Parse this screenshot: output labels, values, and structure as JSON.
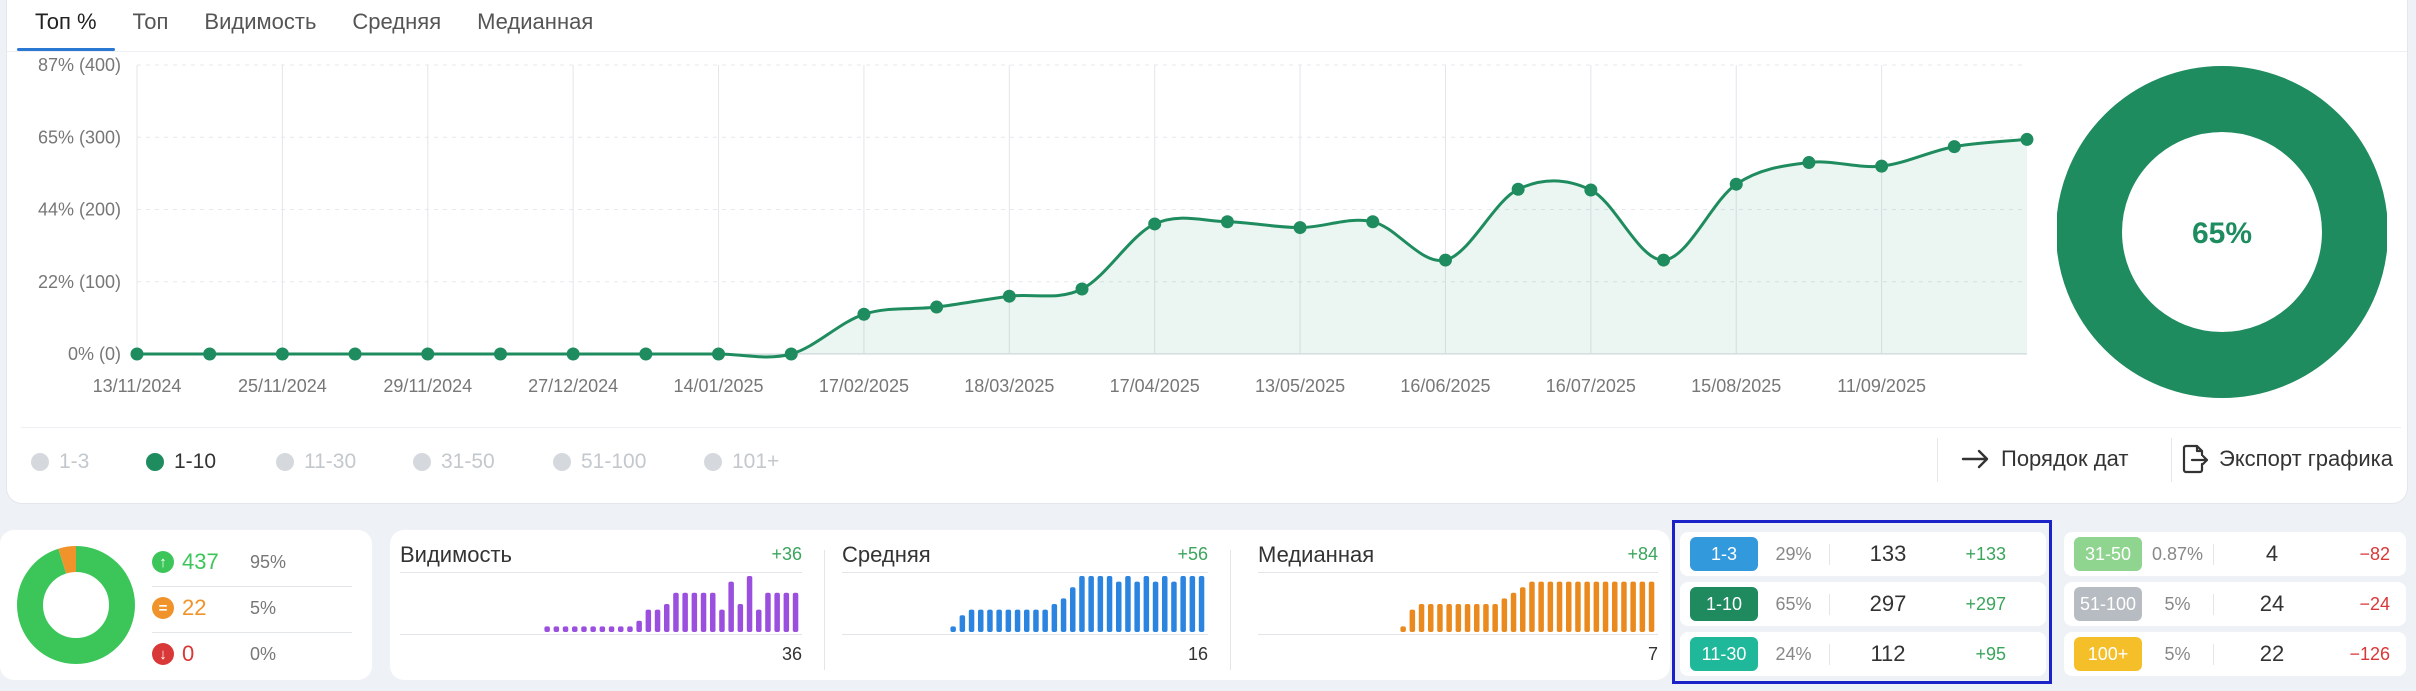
{
  "tabs": [
    {
      "label": "Топ %",
      "active": true
    },
    {
      "label": "Топ",
      "active": false
    },
    {
      "label": "Видимость",
      "active": false
    },
    {
      "label": "Средняя",
      "active": false
    },
    {
      "label": "Медианная",
      "active": false
    }
  ],
  "chart_data": {
    "type": "area",
    "title": "",
    "xlabel": "",
    "ylabel": "",
    "y_ticks": [
      "0% (0)",
      "22% (100)",
      "44% (200)",
      "65% (300)",
      "87% (400)"
    ],
    "ylim": [
      0,
      400
    ],
    "x_tick_labels": [
      "13/11/2024",
      "25/11/2024",
      "29/11/2024",
      "27/12/2024",
      "14/01/2025",
      "17/02/2025",
      "18/03/2025",
      "17/04/2025",
      "13/05/2025",
      "16/06/2025",
      "16/07/2025",
      "15/08/2025",
      "11/09/2025"
    ],
    "grid": true,
    "series": [
      {
        "color": "#1f8c5f",
        "values": [
          0,
          0,
          0,
          0,
          0,
          0,
          0,
          0,
          0,
          0,
          55,
          65,
          80,
          90,
          180,
          183,
          175,
          183,
          130,
          228,
          227,
          130,
          235,
          265,
          260,
          287,
          297
        ]
      }
    ]
  },
  "donut_big": {
    "label": "65%",
    "value": 65,
    "color": "#1f8c5f"
  },
  "legend": [
    {
      "label": "1-3",
      "active": false
    },
    {
      "label": "1-10",
      "active": true
    },
    {
      "label": "11-30",
      "active": false
    },
    {
      "label": "31-50",
      "active": false
    },
    {
      "label": "51-100",
      "active": false
    },
    {
      "label": "101+",
      "active": false
    }
  ],
  "actions": {
    "order_label": "Порядок дат",
    "export_label": "Экспорт графика"
  },
  "share": {
    "donut": [
      95,
      5,
      0
    ],
    "colors": [
      "#3cc65a",
      "#f0932b",
      "#d93838"
    ],
    "rows": [
      {
        "value": "437",
        "pct": "95%",
        "icon": "arrow-up-icon"
      },
      {
        "value": "22",
        "pct": "5%",
        "icon": "equal-icon"
      },
      {
        "value": "0",
        "pct": "0%",
        "icon": "arrow-down-icon"
      }
    ]
  },
  "metrics": [
    {
      "title": "Видимость",
      "delta": "+36",
      "value": "36",
      "color": "#9b4fdf",
      "bars": [
        1,
        1,
        1,
        1,
        1,
        1,
        1,
        1,
        1,
        1,
        2,
        4,
        4,
        5,
        7,
        7,
        7,
        7,
        7,
        4,
        9,
        5,
        10,
        4,
        7,
        7,
        7,
        7
      ]
    },
    {
      "title": "Средняя",
      "delta": "+56",
      "value": "16",
      "color": "#2a84e0",
      "bars": [
        1,
        3,
        4,
        4,
        4,
        4,
        4,
        4,
        4,
        4,
        4,
        5,
        6,
        8,
        10,
        10,
        10,
        10,
        9,
        10,
        9,
        10,
        9,
        10,
        9,
        10,
        10,
        10
      ]
    },
    {
      "title": "Медианная",
      "delta": "+84",
      "value": "7",
      "color": "#ea8a1e",
      "bars": [
        1,
        4,
        5,
        5,
        5,
        5,
        5,
        5,
        5,
        5,
        5,
        6,
        7,
        8,
        9,
        9,
        9,
        9,
        9,
        9,
        9,
        9,
        9,
        9,
        9,
        9,
        9,
        9
      ]
    }
  ],
  "ranges_left": [
    {
      "label": "1-3",
      "pct": "29%",
      "count": "133",
      "delta": "+133",
      "color": "#3399dd",
      "sign": "pos"
    },
    {
      "label": "1-10",
      "pct": "65%",
      "count": "297",
      "delta": "+297",
      "color": "#1e8a5e",
      "sign": "pos"
    },
    {
      "label": "11-30",
      "pct": "24%",
      "count": "112",
      "delta": "+95",
      "color": "#1fb89a",
      "sign": "pos"
    }
  ],
  "ranges_right": [
    {
      "label": "31-50",
      "pct": "0.87%",
      "count": "4",
      "delta": "−82",
      "color": "#8fd48f",
      "sign": "neg"
    },
    {
      "label": "51-100",
      "pct": "5%",
      "count": "24",
      "delta": "−24",
      "color": "#b7bcc2",
      "sign": "neg"
    },
    {
      "label": "100+",
      "pct": "5%",
      "count": "22",
      "delta": "−126",
      "color": "#f5bf2a",
      "sign": "neg"
    }
  ]
}
